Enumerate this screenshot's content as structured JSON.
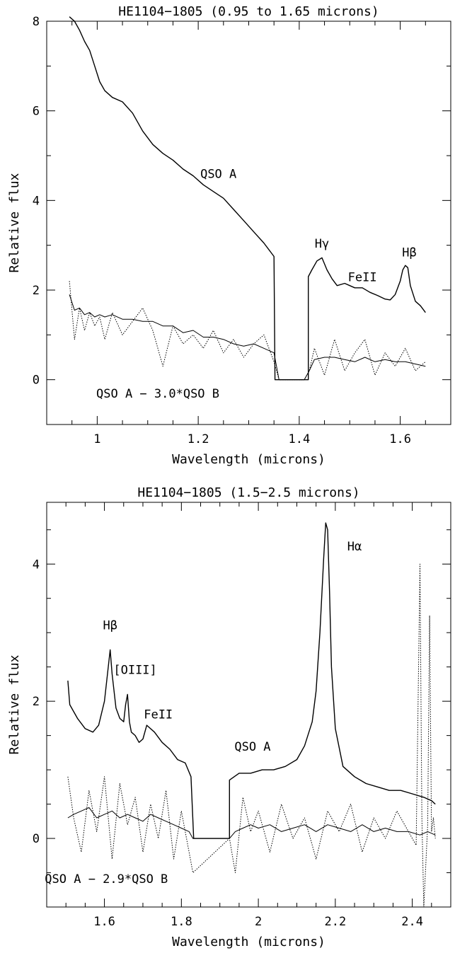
{
  "chart_data": [
    {
      "type": "line",
      "title": "HE1104−1805 (0.95 to 1.65 microns)",
      "xlabel": "Wavelength (microns)",
      "ylabel": "Relative flux",
      "xlim": [
        0.9,
        1.7
      ],
      "ylim": [
        -1,
        8
      ],
      "xticks": [
        1.0,
        1.2,
        1.4,
        1.6
      ],
      "xtick_labels": [
        "1",
        "1.2",
        "1.4",
        "1.6"
      ],
      "yticks": [
        0,
        2,
        4,
        6,
        8
      ],
      "ytick_labels": [
        "0",
        "2",
        "4",
        "6",
        "8"
      ],
      "grid": false,
      "annotations": [
        {
          "text": "QSO A",
          "x": 1.24,
          "y": 4.5
        },
        {
          "text": "Hγ",
          "x": 1.445,
          "y": 2.95
        },
        {
          "text": "FeII",
          "x": 1.525,
          "y": 2.2
        },
        {
          "text": "Hβ",
          "x": 1.618,
          "y": 2.75
        },
        {
          "text": "QSO A − 3.0*QSO B",
          "x": 1.12,
          "y": -0.4
        }
      ],
      "series": [
        {
          "style": "solid",
          "gaps": [
            [
              1.352,
              1.418
            ]
          ],
          "x": [
            0.945,
            0.955,
            0.965,
            0.975,
            0.985,
            0.995,
            1.005,
            1.015,
            1.03,
            1.05,
            1.07,
            1.09,
            1.11,
            1.13,
            1.15,
            1.17,
            1.19,
            1.21,
            1.23,
            1.25,
            1.27,
            1.29,
            1.31,
            1.33,
            1.35,
            1.418,
            1.425,
            1.435,
            1.445,
            1.455,
            1.465,
            1.475,
            1.49,
            1.5,
            1.51,
            1.525,
            1.54,
            1.555,
            1.57,
            1.58,
            1.59,
            1.6,
            1.605,
            1.61,
            1.615,
            1.62,
            1.63,
            1.64,
            1.65
          ],
          "y": [
            8.1,
            8.0,
            7.8,
            7.55,
            7.35,
            7.0,
            6.65,
            6.45,
            6.3,
            6.2,
            5.95,
            5.55,
            5.25,
            5.05,
            4.9,
            4.7,
            4.55,
            4.35,
            4.2,
            4.05,
            3.8,
            3.55,
            3.3,
            3.05,
            2.75,
            2.3,
            2.45,
            2.65,
            2.72,
            2.45,
            2.25,
            2.1,
            2.15,
            2.1,
            2.05,
            2.05,
            1.95,
            1.88,
            1.8,
            1.78,
            1.9,
            2.2,
            2.45,
            2.55,
            2.5,
            2.1,
            1.75,
            1.65,
            1.5
          ]
        },
        {
          "style": "dotted",
          "x": [
            0.945,
            0.955,
            0.965,
            0.975,
            0.985,
            0.995,
            1.005,
            1.015,
            1.03,
            1.05,
            1.07,
            1.09,
            1.11,
            1.13,
            1.15,
            1.17,
            1.19,
            1.21,
            1.23,
            1.25,
            1.27,
            1.29,
            1.31,
            1.33,
            1.35,
            1.36,
            1.38,
            1.41,
            1.42,
            1.43,
            1.45,
            1.47,
            1.49,
            1.51,
            1.53,
            1.55,
            1.57,
            1.59,
            1.61,
            1.63,
            1.65
          ],
          "y": [
            2.2,
            0.9,
            1.6,
            1.1,
            1.5,
            1.2,
            1.4,
            0.9,
            1.5,
            1.0,
            1.3,
            1.6,
            1.1,
            0.3,
            1.2,
            0.8,
            1.0,
            0.7,
            1.1,
            0.6,
            0.9,
            0.5,
            0.8,
            1.0,
            0.4,
            0.0,
            0.0,
            0.0,
            0.2,
            0.7,
            0.1,
            0.9,
            0.2,
            0.6,
            0.9,
            0.1,
            0.6,
            0.3,
            0.7,
            0.2,
            0.4
          ]
        },
        {
          "style": "solid-thin",
          "x": [
            0.945,
            0.955,
            0.965,
            0.975,
            0.985,
            0.995,
            1.005,
            1.015,
            1.03,
            1.05,
            1.07,
            1.09,
            1.11,
            1.13,
            1.15,
            1.17,
            1.19,
            1.21,
            1.23,
            1.25,
            1.27,
            1.29,
            1.31,
            1.33,
            1.35,
            1.36,
            1.38,
            1.41,
            1.42,
            1.43,
            1.45,
            1.47,
            1.49,
            1.51,
            1.53,
            1.55,
            1.57,
            1.59,
            1.61,
            1.63,
            1.65
          ],
          "y": [
            1.9,
            1.55,
            1.6,
            1.45,
            1.5,
            1.4,
            1.45,
            1.4,
            1.45,
            1.35,
            1.35,
            1.3,
            1.3,
            1.2,
            1.2,
            1.05,
            1.1,
            0.95,
            0.95,
            0.9,
            0.8,
            0.75,
            0.8,
            0.7,
            0.6,
            0.0,
            0.0,
            0.0,
            0.2,
            0.45,
            0.5,
            0.5,
            0.45,
            0.4,
            0.5,
            0.4,
            0.45,
            0.4,
            0.4,
            0.35,
            0.3
          ]
        }
      ]
    },
    {
      "type": "line",
      "title": "HE1104−1805 (1.5−2.5 microns)",
      "xlabel": "Wavelength (microns)",
      "ylabel": "Relative flux",
      "xlim": [
        1.45,
        2.5
      ],
      "ylim": [
        -1,
        4.9
      ],
      "xticks": [
        1.6,
        1.8,
        2.0,
        2.2,
        2.4
      ],
      "xtick_labels": [
        "1.6",
        "1.8",
        "2",
        "2.2",
        "2.4"
      ],
      "yticks": [
        0,
        2,
        4
      ],
      "ytick_labels": [
        "0",
        "2",
        "4"
      ],
      "grid": false,
      "annotations": [
        {
          "text": "Hβ",
          "x": 1.615,
          "y": 3.05
        },
        {
          "text": "[OIII]",
          "x": 1.68,
          "y": 2.4
        },
        {
          "text": "FeII",
          "x": 1.74,
          "y": 1.75
        },
        {
          "text": "QSO A",
          "x": 1.985,
          "y": 1.28
        },
        {
          "text": "Hα",
          "x": 2.25,
          "y": 4.2
        },
        {
          "text": "QSO A − 2.9*QSO B",
          "x": 1.605,
          "y": -0.65
        }
      ],
      "series": [
        {
          "style": "solid",
          "gaps": [
            [
              1.832,
              1.925
            ]
          ],
          "x": [
            1.505,
            1.51,
            1.53,
            1.55,
            1.57,
            1.585,
            1.6,
            1.61,
            1.615,
            1.62,
            1.63,
            1.64,
            1.65,
            1.655,
            1.66,
            1.665,
            1.67,
            1.68,
            1.69,
            1.7,
            1.71,
            1.73,
            1.75,
            1.77,
            1.79,
            1.81,
            1.825,
            1.925,
            1.95,
            1.98,
            2.01,
            2.04,
            2.07,
            2.1,
            2.12,
            2.14,
            2.15,
            2.16,
            2.17,
            2.175,
            2.18,
            2.185,
            2.19,
            2.2,
            2.22,
            2.25,
            2.28,
            2.31,
            2.34,
            2.37,
            2.4,
            2.43,
            2.45,
            2.46
          ],
          "y": [
            2.3,
            1.95,
            1.75,
            1.6,
            1.55,
            1.65,
            2.0,
            2.5,
            2.75,
            2.4,
            1.9,
            1.75,
            1.7,
            1.95,
            2.1,
            1.7,
            1.55,
            1.5,
            1.4,
            1.45,
            1.65,
            1.55,
            1.4,
            1.3,
            1.15,
            1.1,
            0.9,
            0.85,
            0.95,
            0.95,
            1.0,
            1.0,
            1.05,
            1.15,
            1.35,
            1.7,
            2.15,
            3.0,
            4.1,
            4.6,
            4.5,
            3.6,
            2.5,
            1.6,
            1.05,
            0.9,
            0.8,
            0.75,
            0.7,
            0.7,
            0.65,
            0.6,
            0.55,
            0.5
          ]
        },
        {
          "style": "dotted",
          "x": [
            1.505,
            1.52,
            1.54,
            1.56,
            1.58,
            1.6,
            1.62,
            1.64,
            1.66,
            1.68,
            1.7,
            1.72,
            1.74,
            1.76,
            1.78,
            1.8,
            1.82,
            1.83,
            1.925,
            1.94,
            1.96,
            1.98,
            2.0,
            2.03,
            2.06,
            2.09,
            2.12,
            2.15,
            2.18,
            2.21,
            2.24,
            2.27,
            2.3,
            2.33,
            2.36,
            2.39,
            2.41,
            2.42,
            2.425,
            2.43,
            2.44,
            2.445,
            2.45,
            2.455,
            2.46
          ],
          "y": [
            0.9,
            0.3,
            -0.2,
            0.7,
            0.1,
            0.9,
            -0.3,
            0.8,
            0.2,
            0.6,
            -0.2,
            0.5,
            0.0,
            0.7,
            -0.3,
            0.4,
            -0.2,
            -0.5,
            0.0,
            -0.5,
            0.6,
            0.1,
            0.4,
            -0.2,
            0.5,
            0.0,
            0.3,
            -0.3,
            0.4,
            0.1,
            0.5,
            -0.2,
            0.3,
            0.0,
            0.4,
            0.1,
            -0.1,
            4.0,
            0.3,
            -1.0,
            0.2,
            3.25,
            0.1,
            0.3,
            0.0
          ]
        },
        {
          "style": "solid-thin",
          "x": [
            1.505,
            1.52,
            1.54,
            1.56,
            1.58,
            1.6,
            1.62,
            1.64,
            1.66,
            1.68,
            1.7,
            1.72,
            1.74,
            1.76,
            1.78,
            1.8,
            1.82,
            1.83,
            1.925,
            1.94,
            1.96,
            1.98,
            2.0,
            2.03,
            2.06,
            2.09,
            2.12,
            2.15,
            2.18,
            2.21,
            2.24,
            2.27,
            2.3,
            2.33,
            2.36,
            2.39,
            2.42,
            2.44,
            2.46
          ],
          "y": [
            0.3,
            0.35,
            0.4,
            0.45,
            0.3,
            0.35,
            0.4,
            0.3,
            0.35,
            0.3,
            0.25,
            0.35,
            0.3,
            0.25,
            0.2,
            0.15,
            0.1,
            0.0,
            0.0,
            0.1,
            0.15,
            0.2,
            0.15,
            0.2,
            0.1,
            0.15,
            0.2,
            0.1,
            0.2,
            0.15,
            0.1,
            0.2,
            0.1,
            0.15,
            0.1,
            0.1,
            0.05,
            0.1,
            0.05
          ]
        }
      ]
    }
  ]
}
